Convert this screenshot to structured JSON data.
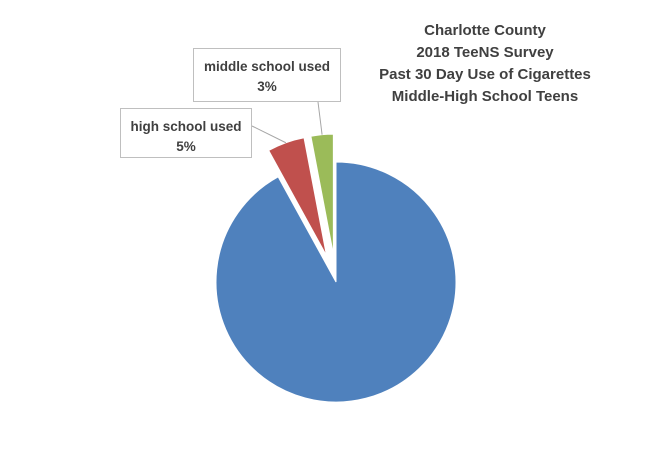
{
  "chart_data": {
    "type": "pie",
    "title_lines": [
      "Charlotte County",
      "2018 TeeNS Survey",
      "Past 30 Day Use of Cigarettes",
      "Middle-High School Teens"
    ],
    "slices": [
      {
        "name": "",
        "value": 92,
        "color": "#4f81bd",
        "label": "",
        "exploded": false
      },
      {
        "name": "high school used",
        "value": 5,
        "color": "#c0504d",
        "label": "5%",
        "exploded": true
      },
      {
        "name": "middle school used",
        "value": 3,
        "color": "#9bbb59",
        "label": "3%",
        "exploded": true
      }
    ],
    "legend": "none",
    "grid": false
  }
}
